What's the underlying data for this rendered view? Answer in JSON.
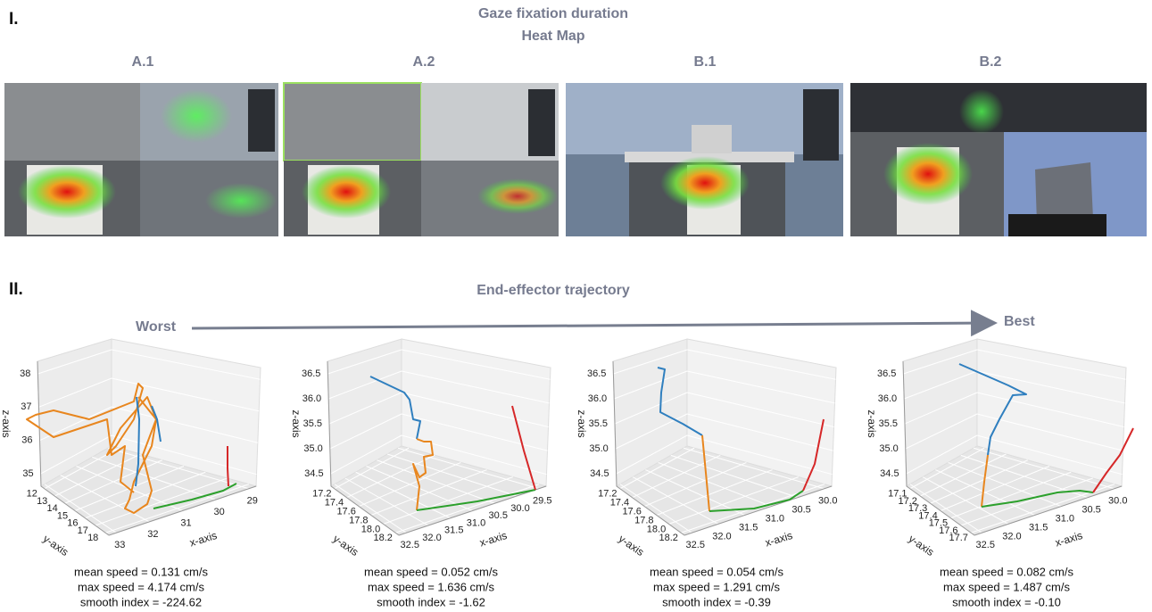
{
  "section1": {
    "label": "I.",
    "title": "Gaze fixation duration",
    "subtitle": "Heat Map",
    "panels": [
      "A.1",
      "A.2",
      "B.1",
      "B.2"
    ]
  },
  "section2": {
    "label": "II.",
    "title": "End-effector trajectory",
    "worst": "Worst",
    "best": "Best",
    "plots": [
      {
        "zticks": [
          "35",
          "36",
          "37",
          "38"
        ],
        "yticks": [
          "12",
          "13",
          "14",
          "15",
          "16",
          "17",
          "18"
        ],
        "xticks": [
          "33",
          "32",
          "31",
          "30",
          "29"
        ],
        "xlabel": "x-axis",
        "ylabel": "y-axis",
        "zlabel": "z-axis",
        "stats": [
          "mean speed = 0.131 cm/s",
          "max speed = 4.174 cm/s",
          "smooth index = -224.62"
        ]
      },
      {
        "zticks": [
          "34.5",
          "35.0",
          "35.5",
          "36.0",
          "36.5"
        ],
        "yticks": [
          "17.2",
          "17.4",
          "17.6",
          "17.8",
          "18.0",
          "18.2"
        ],
        "xticks": [
          "32.5",
          "32.0",
          "31.5",
          "31.0",
          "30.5",
          "30.0",
          "29.5"
        ],
        "xlabel": "x-axis",
        "ylabel": "y-axis",
        "zlabel": "z-axis",
        "stats": [
          "mean speed = 0.052 cm/s",
          "max speed = 1.636 cm/s",
          "smooth index = -1.62"
        ]
      },
      {
        "zticks": [
          "34.5",
          "35.0",
          "35.5",
          "36.0",
          "36.5"
        ],
        "yticks": [
          "17.2",
          "17.4",
          "17.6",
          "17.8",
          "18.0",
          "18.2"
        ],
        "xticks": [
          "32.5",
          "32.0",
          "31.5",
          "31.0",
          "30.5",
          "30.0"
        ],
        "xlabel": "x-axis",
        "ylabel": "y-axis",
        "zlabel": "z-axis",
        "stats": [
          "mean speed = 0.054 cm/s",
          "max speed = 1.291 cm/s",
          "smooth index = -0.39"
        ]
      },
      {
        "zticks": [
          "34.5",
          "35.0",
          "35.5",
          "36.0",
          "36.5"
        ],
        "yticks": [
          "17.1",
          "17.2",
          "17.3",
          "17.4",
          "17.5",
          "17.6",
          "17.7"
        ],
        "xticks": [
          "32.5",
          "32.0",
          "31.5",
          "31.0",
          "30.5",
          "30.0"
        ],
        "xlabel": "x-axis",
        "ylabel": "y-axis",
        "zlabel": "z-axis",
        "stats": [
          "mean speed = 0.082 cm/s",
          "max speed = 1.487 cm/s",
          "smooth index = -0.10"
        ]
      }
    ]
  }
}
